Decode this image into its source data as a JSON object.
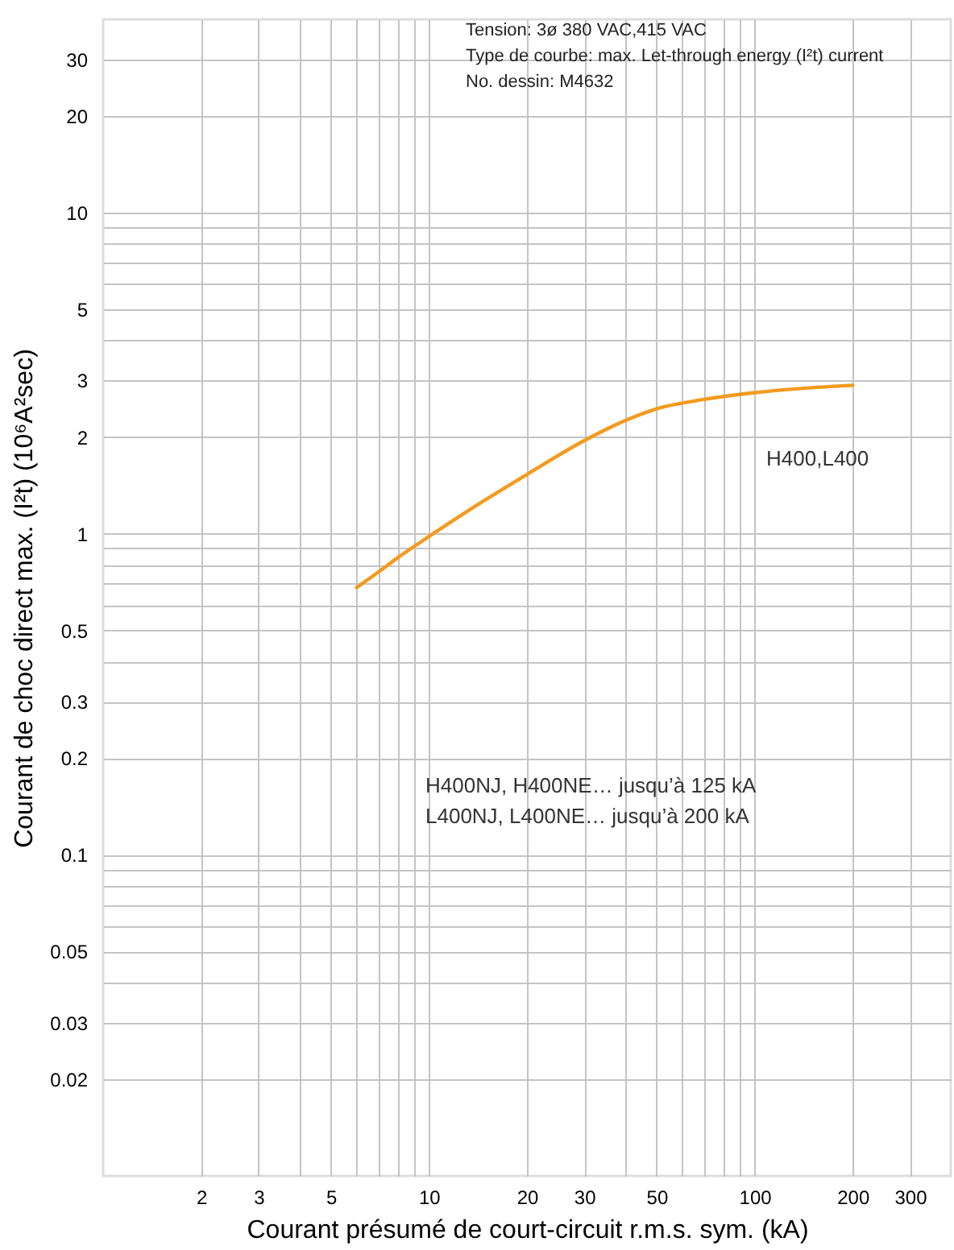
{
  "chart_data": {
    "type": "line",
    "xlabel": "Courant présumé de court-circuit r.m.s. sym. (kA)",
    "ylabel": "Courant de choc direct max. (I²t) (10⁶A²sec)",
    "log": "xy",
    "grid": true,
    "marker": "none",
    "line_style": "solid",
    "xlim": [
      1,
      400
    ],
    "ylim": [
      0.01,
      40
    ],
    "xticks": [
      2,
      3,
      {
        "value": 4,
        "label": null
      },
      5,
      {
        "value": 6,
        "label": null
      },
      {
        "value": 7,
        "label": null
      },
      {
        "value": 8,
        "label": null
      },
      {
        "value": 9,
        "label": null
      },
      10,
      20,
      30,
      {
        "value": 40,
        "label": null
      },
      50,
      {
        "value": 60,
        "label": null
      },
      {
        "value": 70,
        "label": null
      },
      {
        "value": 80,
        "label": null
      },
      {
        "value": 90,
        "label": null
      },
      100,
      200,
      300
    ],
    "yticks": [
      0.02,
      0.03,
      {
        "value": 0.04,
        "label": null
      },
      0.05,
      {
        "value": 0.06,
        "label": null
      },
      {
        "value": 0.07,
        "label": null
      },
      {
        "value": 0.08,
        "label": null
      },
      {
        "value": 0.09,
        "label": null
      },
      0.1,
      0.2,
      0.3,
      {
        "value": 0.4,
        "label": null
      },
      0.5,
      {
        "value": 0.6,
        "label": null
      },
      {
        "value": 0.7,
        "label": null
      },
      {
        "value": 0.8,
        "label": null
      },
      {
        "value": 0.9,
        "label": null
      },
      1,
      2,
      3,
      {
        "value": 4,
        "label": null
      },
      5,
      {
        "value": 6,
        "label": null
      },
      {
        "value": 7,
        "label": null
      },
      {
        "value": 8,
        "label": null
      },
      {
        "value": 9,
        "label": null
      },
      10,
      20,
      30
    ],
    "series": [
      {
        "name": "H400,L400",
        "color": "#f39a1f",
        "x": [
          6,
          7,
          8,
          10,
          15,
          20,
          30,
          40,
          50,
          70,
          100,
          150,
          200
        ],
        "values": [
          0.68,
          0.76,
          0.84,
          0.98,
          1.28,
          1.53,
          1.95,
          2.25,
          2.45,
          2.62,
          2.75,
          2.85,
          2.9
        ]
      }
    ],
    "annotations": [
      "Tension:  3ø 380 VAC,415 VAC",
      "Type de courbe:  max. Let-through energy (I²t) current",
      "No. dessin:  M4632",
      "H400NJ, H400NE… jusqu’à 125 kA",
      "L400NJ, L400NE… jusqu’à 200 kA"
    ]
  }
}
